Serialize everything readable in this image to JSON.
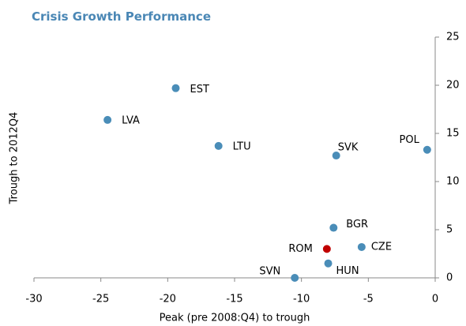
{
  "chart_data": {
    "type": "scatter",
    "title": "Crisis Growth  Performance",
    "x_label": "Peak (pre 2008:Q4) to trough",
    "y_label": "Trough to 2012Q4",
    "labels": [
      "EST",
      "LVA",
      "LTU",
      "SVK",
      "POL",
      "BGR",
      "CZE",
      "ROM",
      "HUN",
      "SVN"
    ],
    "x": [
      -19.4,
      -24.5,
      -16.2,
      -7.4,
      -0.6,
      -7.6,
      -5.5,
      -8.1,
      -8.0,
      -10.5
    ],
    "values": [
      19.7,
      16.4,
      13.7,
      12.7,
      13.3,
      5.2,
      3.2,
      3.0,
      1.5,
      0
    ],
    "colors": [
      "#4a8db8",
      "#4a8db8",
      "#4a8db8",
      "#4a8db8",
      "#4a8db8",
      "#4a8db8",
      "#4a8db8",
      "#c00000",
      "#4a8db8",
      "#4a8db8"
    ],
    "xlim": [
      -30,
      0
    ],
    "xticks": [
      -30,
      -25,
      -20,
      -15,
      -10,
      -5,
      0
    ],
    "ylim": [
      0,
      25
    ],
    "yticks": [
      0,
      5,
      10,
      15,
      20,
      25
    ],
    "y_axis_side": "right"
  }
}
